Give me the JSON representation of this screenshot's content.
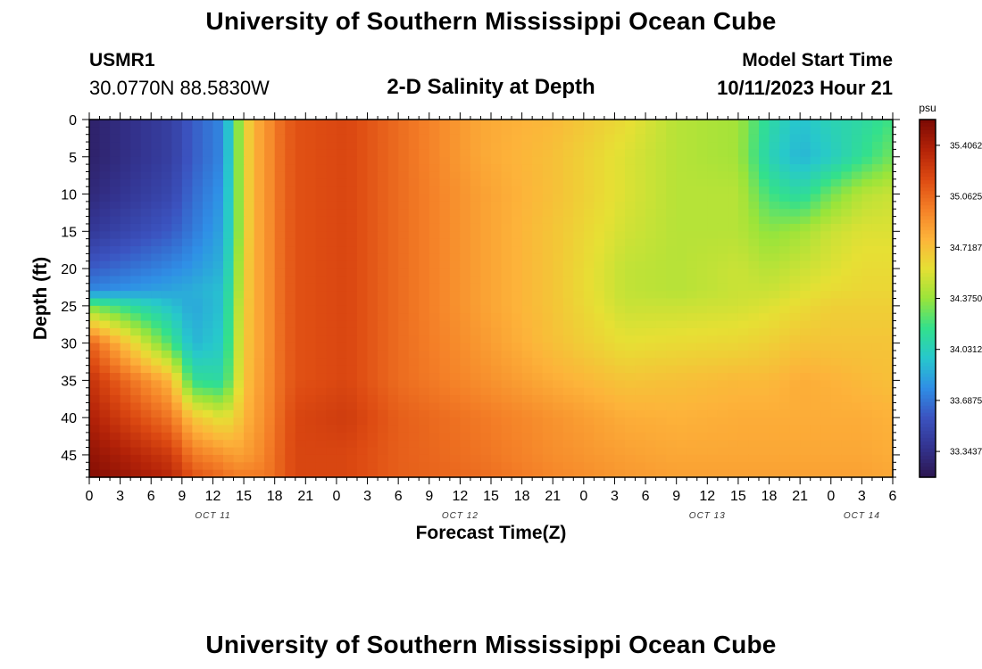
{
  "header": {
    "title": "University of Southern Mississippi Ocean Cube",
    "station_id": "USMR1",
    "station_coords": "30.0770N  88.5830W",
    "plot_title": "2-D Salinity at Depth",
    "model_start_label": "Model Start Time",
    "model_start_value": "10/11/2023 Hour 21"
  },
  "footer": {
    "title": "University of Southern Mississippi Ocean Cube"
  },
  "chart_data": {
    "type": "heatmap",
    "title": "2-D Salinity at Depth",
    "xlabel": "Forecast Time(Z)",
    "ylabel": "Depth (ft)",
    "x_units": "hours from 10/11 00Z",
    "xlim": [
      0,
      78
    ],
    "ylim": [
      0,
      48
    ],
    "y_inverted": true,
    "x_tick_values": [
      0,
      3,
      6,
      9,
      12,
      15,
      18,
      21,
      24,
      27,
      30,
      33,
      36,
      39,
      42,
      45,
      48,
      51,
      54,
      57,
      60,
      63,
      66,
      69,
      72,
      75,
      78
    ],
    "x_tick_labels": [
      "0",
      "3",
      "6",
      "9",
      "12",
      "15",
      "18",
      "21",
      "0",
      "3",
      "6",
      "9",
      "12",
      "15",
      "18",
      "21",
      "0",
      "3",
      "6",
      "9",
      "12",
      "15",
      "18",
      "21",
      "0",
      "3",
      "6"
    ],
    "date_labels": [
      {
        "label": "OCT 11",
        "x": 12
      },
      {
        "label": "OCT 12",
        "x": 36
      },
      {
        "label": "OCT 13",
        "x": 60
      },
      {
        "label": "OCT 14",
        "x": 75
      }
    ],
    "y_ticks": [
      0,
      5,
      10,
      15,
      20,
      25,
      30,
      35,
      40,
      45
    ],
    "colorbar": {
      "unit": "psu",
      "min": 33.17,
      "max": 35.58,
      "tick_values": [
        35.4062,
        35.0625,
        34.7187,
        34.375,
        34.0312,
        33.6875,
        33.3437
      ],
      "tick_labels": [
        "35.4062",
        "35.0625",
        "34.7187",
        "34.3750",
        "34.0312",
        "33.6875",
        "33.3437"
      ],
      "colors": [
        "#2c1650",
        "#33338f",
        "#3b53c0",
        "#2f8fe6",
        "#27c8cc",
        "#33e08c",
        "#9ae43a",
        "#e6e034",
        "#fdb33a",
        "#f47f27",
        "#dd4a12",
        "#b32208",
        "#7a0a04"
      ]
    },
    "interpolation": "bilinear",
    "grid_x": [
      0,
      8,
      10,
      13,
      14,
      15,
      16,
      17,
      18,
      20,
      25,
      30,
      38,
      45,
      52,
      57,
      63,
      66,
      69,
      72,
      75,
      78
    ],
    "grid_y": [
      0,
      5,
      10,
      15,
      20,
      23,
      25,
      30,
      35,
      40,
      45,
      48
    ],
    "values": [
      [
        33.25,
        33.45,
        33.6,
        33.75,
        34.15,
        34.55,
        34.8,
        34.85,
        35.0,
        35.15,
        35.2,
        35.05,
        34.82,
        34.75,
        34.6,
        34.45,
        34.4,
        34.1,
        33.95,
        34.05,
        34.1,
        34.2
      ],
      [
        33.25,
        33.45,
        33.6,
        33.75,
        34.15,
        34.55,
        34.8,
        34.85,
        35.0,
        35.15,
        35.2,
        35.05,
        34.82,
        34.72,
        34.55,
        34.45,
        34.4,
        34.05,
        33.9,
        34.0,
        34.15,
        34.3
      ],
      [
        33.3,
        33.5,
        33.65,
        33.8,
        34.15,
        34.55,
        34.8,
        34.85,
        35.0,
        35.15,
        35.2,
        35.05,
        34.85,
        34.72,
        34.55,
        34.45,
        34.45,
        34.2,
        34.1,
        34.3,
        34.45,
        34.5
      ],
      [
        33.4,
        33.6,
        33.7,
        33.85,
        34.15,
        34.55,
        34.8,
        34.85,
        35.0,
        35.15,
        35.2,
        35.05,
        34.85,
        34.7,
        34.52,
        34.45,
        34.45,
        34.35,
        34.4,
        34.5,
        34.55,
        34.55
      ],
      [
        33.6,
        33.75,
        33.8,
        33.9,
        34.2,
        34.6,
        34.8,
        34.85,
        35.0,
        35.15,
        35.2,
        35.05,
        34.85,
        34.7,
        34.48,
        34.45,
        34.5,
        34.45,
        34.5,
        34.55,
        34.6,
        34.6
      ],
      [
        33.75,
        33.85,
        33.88,
        33.95,
        34.25,
        34.6,
        34.8,
        34.85,
        35.0,
        35.15,
        35.2,
        35.05,
        34.85,
        34.7,
        34.48,
        34.45,
        34.5,
        34.5,
        34.55,
        34.6,
        34.62,
        34.62
      ],
      [
        34.3,
        33.95,
        33.85,
        33.95,
        34.3,
        34.62,
        34.8,
        34.85,
        35.0,
        35.15,
        35.2,
        35.05,
        34.85,
        34.7,
        34.5,
        34.5,
        34.52,
        34.55,
        34.6,
        34.65,
        34.65,
        34.65
      ],
      [
        35.1,
        34.2,
        33.9,
        34.0,
        34.35,
        34.65,
        34.8,
        34.85,
        35.0,
        35.15,
        35.2,
        35.05,
        34.88,
        34.72,
        34.58,
        34.6,
        34.62,
        34.65,
        34.7,
        34.7,
        34.7,
        34.7
      ],
      [
        35.3,
        34.75,
        34.15,
        34.1,
        34.4,
        34.68,
        34.82,
        34.87,
        35.0,
        35.15,
        35.2,
        35.05,
        34.92,
        34.8,
        34.7,
        34.72,
        34.75,
        34.75,
        34.8,
        34.78,
        34.75,
        34.72
      ],
      [
        35.4,
        35.0,
        34.7,
        34.55,
        34.62,
        34.75,
        34.85,
        34.9,
        35.02,
        35.2,
        35.25,
        35.1,
        35.0,
        34.9,
        34.8,
        34.78,
        34.8,
        34.8,
        34.8,
        34.8,
        34.8,
        34.78
      ],
      [
        35.5,
        35.25,
        35.0,
        34.9,
        34.85,
        34.85,
        34.9,
        34.95,
        35.05,
        35.2,
        35.2,
        35.1,
        35.02,
        34.92,
        34.85,
        34.82,
        34.82,
        34.82,
        34.82,
        34.82,
        34.82,
        34.8
      ],
      [
        35.55,
        35.35,
        35.15,
        35.05,
        35.0,
        35.0,
        35.0,
        35.0,
        35.05,
        35.2,
        35.2,
        35.1,
        35.05,
        34.95,
        34.88,
        34.85,
        34.85,
        34.85,
        34.85,
        34.85,
        34.85,
        34.82
      ]
    ]
  }
}
